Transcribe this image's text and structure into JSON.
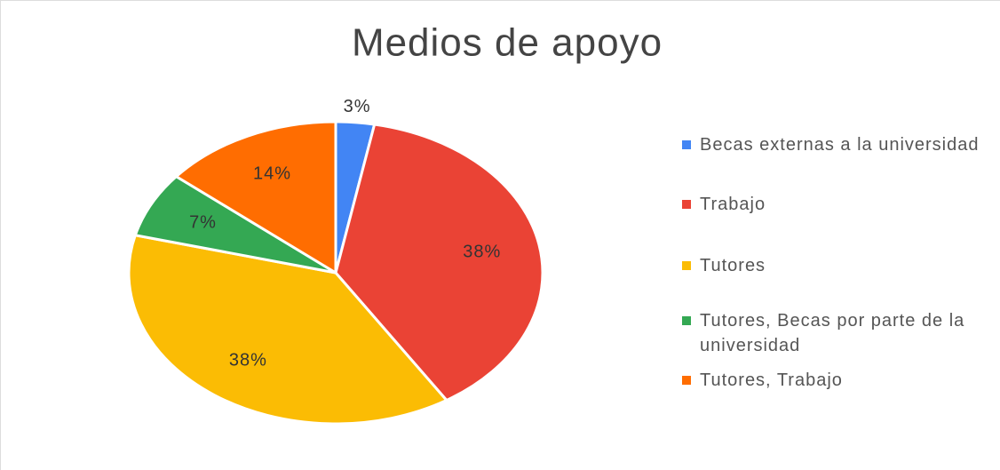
{
  "chart_data": {
    "type": "pie",
    "title": "Medios de apoyo",
    "categories": [
      "Becas externas a la universidad",
      "Trabajo",
      "Tutores",
      "Tutores, Becas por parte de la universidad",
      "Tutores, Trabajo"
    ],
    "values": [
      3,
      38,
      38,
      7,
      14
    ],
    "value_labels": [
      "3%",
      "38%",
      "38%",
      "7%",
      "14%"
    ],
    "colors": [
      "#4285f4",
      "#ea4335",
      "#fbbc04",
      "#34a853",
      "#ff6d01"
    ],
    "legend": "right"
  }
}
